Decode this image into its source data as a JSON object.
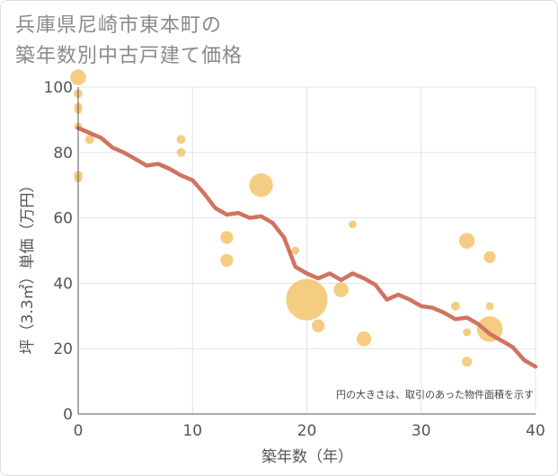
{
  "title_line1": "兵庫県尼崎市東本町の",
  "title_line2": "築年数別中古戸建て価格",
  "chart_data": {
    "type": "scatter+line",
    "xlabel": "築年数（年）",
    "ylabel": "坪（3.3㎡）単価（万円）",
    "xlim": [
      0,
      40
    ],
    "ylim": [
      0,
      100
    ],
    "xticks": [
      0,
      10,
      20,
      30,
      40
    ],
    "yticks": [
      0,
      20,
      40,
      60,
      80,
      100
    ],
    "grid": true,
    "note": "円の大きさは、取引のあった物件面積を示す",
    "colors": {
      "bubble": "#f2c46d",
      "line": "#d0735f",
      "grid": "#dde3ea"
    },
    "bubbles": [
      {
        "x": 0,
        "y": 103,
        "size": 1.6
      },
      {
        "x": 0,
        "y": 98,
        "size": 0.9
      },
      {
        "x": 0,
        "y": 94,
        "size": 0.8
      },
      {
        "x": 0,
        "y": 93,
        "size": 0.8
      },
      {
        "x": 0,
        "y": 88,
        "size": 0.8
      },
      {
        "x": 0,
        "y": 73,
        "size": 0.9
      },
      {
        "x": 0,
        "y": 72,
        "size": 0.8
      },
      {
        "x": 1,
        "y": 84,
        "size": 0.9
      },
      {
        "x": 9,
        "y": 84,
        "size": 0.9
      },
      {
        "x": 9,
        "y": 80,
        "size": 0.9
      },
      {
        "x": 13,
        "y": 54,
        "size": 1.3
      },
      {
        "x": 13,
        "y": 47,
        "size": 1.3
      },
      {
        "x": 16,
        "y": 70,
        "size": 2.4
      },
      {
        "x": 19,
        "y": 50,
        "size": 0.8
      },
      {
        "x": 20,
        "y": 35,
        "size": 4.2
      },
      {
        "x": 21,
        "y": 27,
        "size": 1.3
      },
      {
        "x": 23,
        "y": 38,
        "size": 1.5
      },
      {
        "x": 24,
        "y": 58,
        "size": 0.8
      },
      {
        "x": 25,
        "y": 23,
        "size": 1.5
      },
      {
        "x": 33,
        "y": 33,
        "size": 0.9
      },
      {
        "x": 34,
        "y": 53,
        "size": 1.6
      },
      {
        "x": 34,
        "y": 25,
        "size": 0.8
      },
      {
        "x": 34,
        "y": 16,
        "size": 1.0
      },
      {
        "x": 36,
        "y": 48,
        "size": 1.2
      },
      {
        "x": 36,
        "y": 33,
        "size": 0.8
      },
      {
        "x": 36,
        "y": 26,
        "size": 2.6
      }
    ],
    "trend": {
      "x": [
        0,
        1,
        2,
        3,
        4,
        5,
        6,
        7,
        8,
        9,
        10,
        11,
        12,
        13,
        14,
        15,
        16,
        17,
        18,
        19,
        20,
        21,
        22,
        23,
        24,
        25,
        26,
        27,
        28,
        29,
        30,
        31,
        32,
        33,
        34,
        35,
        36,
        37,
        38,
        39,
        40
      ],
      "y": [
        87.5,
        86,
        84.5,
        81.5,
        80,
        78,
        76,
        76.5,
        75,
        73,
        71.5,
        67.5,
        63,
        61,
        61.5,
        60,
        60.5,
        58.5,
        54,
        45,
        43,
        41.5,
        43,
        41,
        43,
        41.5,
        39.5,
        35,
        36.5,
        35,
        33,
        32.5,
        31,
        29,
        29.5,
        27.5,
        24.5,
        22.5,
        20.5,
        16.5,
        14.5
      ]
    }
  }
}
